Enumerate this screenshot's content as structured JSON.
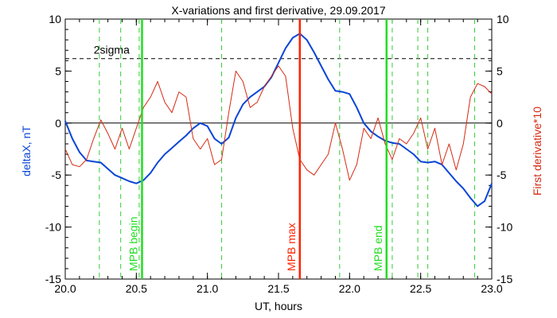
{
  "chart_data": {
    "type": "line",
    "title": "X-variations and first derivative, 29.09.2017",
    "xlabel": "UT, hours",
    "ylabel_left": "deltaX, nT",
    "ylabel_right": "First derivative*10",
    "xlim": [
      20.0,
      23.0
    ],
    "ylim": [
      -15,
      10
    ],
    "x_ticks": [
      20.0,
      20.5,
      21.0,
      21.5,
      22.0,
      22.5,
      23.0
    ],
    "x_tick_labels": [
      "20.0",
      "20.5",
      "21.0",
      "21.5",
      "22.0",
      "22.5",
      "23.0"
    ],
    "y_ticks": [
      -15,
      -10,
      -5,
      0,
      5,
      10
    ],
    "y_tick_labels": [
      "-15",
      "-10",
      "-5",
      "0",
      "5",
      "10"
    ],
    "colors": {
      "deltax": "#0b45d6",
      "derivative": "#d42a12",
      "mpb_begin": "#22dd22",
      "mpb_max": "#ff2200",
      "mpb_end": "#22dd22",
      "green_dash": "#33cc33",
      "axis": "#000000"
    },
    "series": [
      {
        "name": "deltaX, nT",
        "axis": "left",
        "x": [
          20.0,
          20.05,
          20.1,
          20.15,
          20.2,
          20.25,
          20.3,
          20.35,
          20.4,
          20.45,
          20.5,
          20.55,
          20.6,
          20.65,
          20.7,
          20.75,
          20.8,
          20.85,
          20.9,
          20.95,
          21.0,
          21.05,
          21.1,
          21.15,
          21.2,
          21.25,
          21.3,
          21.35,
          21.4,
          21.45,
          21.5,
          21.55,
          21.6,
          21.65,
          21.7,
          21.75,
          21.8,
          21.85,
          21.9,
          21.95,
          22.0,
          22.05,
          22.1,
          22.15,
          22.2,
          22.25,
          22.3,
          22.35,
          22.4,
          22.45,
          22.5,
          22.55,
          22.6,
          22.65,
          22.7,
          22.75,
          22.8,
          22.85,
          22.9,
          22.95,
          23.0
        ],
        "values": [
          0.2,
          -1.5,
          -2.8,
          -3.6,
          -3.7,
          -3.8,
          -4.4,
          -5.0,
          -5.3,
          -5.6,
          -5.8,
          -5.5,
          -4.8,
          -3.8,
          -3.0,
          -2.4,
          -1.8,
          -1.2,
          -0.5,
          0.0,
          -0.3,
          -1.5,
          -2.0,
          -1.4,
          0.5,
          1.8,
          2.5,
          3.0,
          3.5,
          4.4,
          5.8,
          7.2,
          8.2,
          8.6,
          8.0,
          6.8,
          5.5,
          4.2,
          3.1,
          3.0,
          2.8,
          1.5,
          0.0,
          -0.8,
          -1.3,
          -1.7,
          -1.9,
          -2.0,
          -2.5,
          -3.0,
          -3.7,
          -3.8,
          -3.7,
          -4.0,
          -4.8,
          -5.6,
          -6.3,
          -7.2,
          -8.0,
          -7.5,
          -5.8
        ]
      },
      {
        "name": "First derivative*10",
        "axis": "right",
        "x": [
          20.0,
          20.05,
          20.1,
          20.15,
          20.2,
          20.25,
          20.3,
          20.35,
          20.4,
          20.45,
          20.5,
          20.55,
          20.6,
          20.65,
          20.7,
          20.75,
          20.8,
          20.85,
          20.9,
          20.95,
          21.0,
          21.05,
          21.1,
          21.15,
          21.2,
          21.25,
          21.3,
          21.35,
          21.4,
          21.45,
          21.5,
          21.55,
          21.6,
          21.65,
          21.7,
          21.75,
          21.8,
          21.85,
          21.9,
          21.95,
          22.0,
          22.05,
          22.1,
          22.15,
          22.2,
          22.25,
          22.3,
          22.35,
          22.4,
          22.45,
          22.5,
          22.55,
          22.6,
          22.65,
          22.7,
          22.75,
          22.8,
          22.85,
          22.9,
          22.95,
          23.0
        ],
        "values": [
          -2.5,
          -4.0,
          -4.2,
          -3.5,
          -1.5,
          0.3,
          -1.0,
          -2.5,
          -0.5,
          -2.5,
          -0.5,
          1.5,
          2.5,
          4.0,
          2.0,
          1.0,
          3.0,
          2.5,
          -1.5,
          -2.5,
          -1.5,
          -4.0,
          -3.5,
          1.0,
          5.0,
          4.0,
          1.5,
          2.0,
          3.5,
          4.5,
          5.5,
          4.5,
          -0.5,
          -3.5,
          -4.5,
          -5.0,
          -4.0,
          -3.0,
          0.0,
          -2.5,
          -5.5,
          -4.0,
          -0.5,
          -1.5,
          0.5,
          -2.0,
          -3.5,
          -1.5,
          -2.0,
          -1.0,
          0.5,
          -2.5,
          -0.5,
          -4.0,
          -2.0,
          -4.5,
          -2.0,
          2.5,
          3.8,
          3.5,
          2.8
        ]
      }
    ],
    "reference_lines": {
      "zero_line": 0,
      "two_sigma_value": 6.2,
      "two_sigma_label": "2sigma"
    },
    "green_dashed_x": [
      20.24,
      20.39,
      20.52,
      21.1,
      21.93,
      22.3,
      22.48,
      22.55,
      22.88
    ],
    "markers": [
      {
        "label": "MPB begin",
        "x": 20.54,
        "color_key": "mpb_begin"
      },
      {
        "label": "MPB max",
        "x": 21.65,
        "color_key": "mpb_max"
      },
      {
        "label": "MPB end",
        "x": 22.26,
        "color_key": "mpb_end"
      }
    ]
  }
}
